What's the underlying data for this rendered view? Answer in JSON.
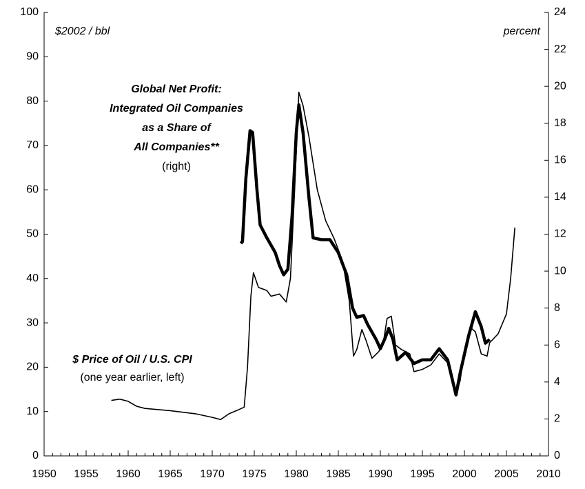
{
  "chart_data": {
    "type": "line",
    "xlim": [
      1950,
      2010
    ],
    "xticks": [
      1950,
      1955,
      1960,
      1965,
      1970,
      1975,
      1980,
      1985,
      1990,
      1995,
      2000,
      2005,
      2010
    ],
    "ylim": [
      0,
      100
    ],
    "yticks": [
      0,
      10,
      20,
      30,
      40,
      50,
      60,
      70,
      80,
      90,
      100
    ],
    "y2lim": [
      0,
      24
    ],
    "y2ticks": [
      0,
      2,
      4,
      6,
      8,
      10,
      12,
      14,
      16,
      18,
      20,
      22,
      24
    ],
    "annotations": [
      "$2002 / bbl",
      "percent",
      "Global Net Profit:",
      "Integrated Oil Companies",
      "as a Share of",
      "All Companies**",
      "(right)",
      "$ Price of Oil / U.S. CPI",
      "(one year earlier, left)"
    ],
    "series": [
      {
        "color": "#000000",
        "axis": "y",
        "x": [
          1958,
          1959,
          1960,
          1961,
          1962,
          1965,
          1968,
          1970,
          1971,
          1972,
          1973,
          1973.8,
          1974.2,
          1974.6,
          1974.9,
          1975.5,
          1976.5,
          1977,
          1978,
          1978.8,
          1979.3,
          1979.8,
          1980.3,
          1980.8,
          1981.5,
          1982.5,
          1983.5,
          1984.5,
          1985.5,
          1986.3,
          1986.8,
          1987.2,
          1987.8,
          1988.3,
          1989,
          1989.8,
          1990.3,
          1990.8,
          1991.3,
          1991.8,
          1992.5,
          1993.5,
          1994,
          1995,
          1996,
          1997,
          1998,
          1999,
          1999.5,
          2000,
          2000.7,
          2001.3,
          2002,
          2002.7,
          2003,
          2004,
          2005,
          2005.5,
          2006
        ],
        "values": [
          12.5,
          12.8,
          12.3,
          11.2,
          10.7,
          10.2,
          9.5,
          8.7,
          8.2,
          9.5,
          10.3,
          11,
          20,
          36,
          41.3,
          38,
          37.3,
          36,
          36.5,
          34.7,
          40,
          60,
          82,
          79,
          72,
          60,
          53,
          49,
          44,
          35,
          22.5,
          24,
          28.5,
          26,
          22,
          23.5,
          25,
          31,
          31.5,
          25,
          24,
          23,
          19,
          19.5,
          20.5,
          23,
          21,
          14,
          17,
          24,
          29,
          28,
          23,
          22.5,
          25.5,
          27.5,
          32,
          40,
          51.5
        ]
      },
      {
        "color": "#000000",
        "axis": "y2",
        "x": [
          1973.4,
          1973.6,
          1974,
          1974.5,
          1974.8,
          1975.3,
          1975.7,
          1976.5,
          1977.5,
          1978,
          1978.5,
          1979,
          1979.5,
          1980,
          1980.3,
          1980.8,
          1981.5,
          1982,
          1983,
          1984,
          1985,
          1986,
          1986.7,
          1987.2,
          1988,
          1988.5,
          1989.5,
          1990,
          1990.5,
          1991,
          1991.5,
          1992,
          1993,
          1994,
          1995,
          1996,
          1997,
          1998,
          1999,
          1999.5,
          2000.5,
          2001.3,
          2002,
          2002.5,
          2003
        ],
        "values": [
          11.5,
          11.6,
          15,
          17.6,
          17.5,
          14.5,
          12.5,
          11.8,
          11,
          10.3,
          9.8,
          10.1,
          13,
          17.5,
          19,
          17.5,
          14,
          11.8,
          11.7,
          11.7,
          11,
          9.8,
          8,
          7.5,
          7.6,
          7.1,
          6.3,
          5.8,
          6.3,
          6.9,
          6.3,
          5.2,
          5.6,
          5,
          5.2,
          5.2,
          5.8,
          5.2,
          3.3,
          4.5,
          6.5,
          7.8,
          7,
          6.1,
          6.3
        ]
      }
    ]
  }
}
